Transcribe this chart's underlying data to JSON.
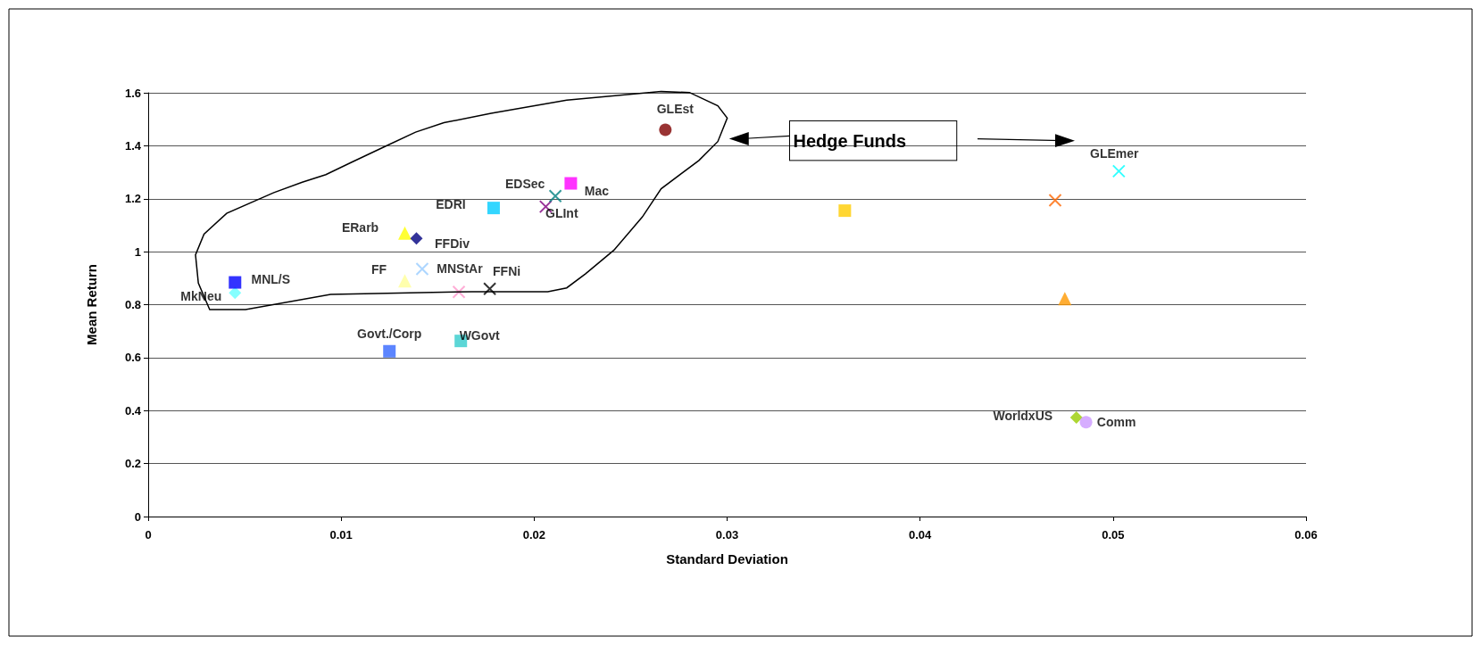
{
  "chart_data": {
    "type": "scatter",
    "xlabel": "Standard Deviation",
    "ylabel": "Mean Return",
    "xlim": [
      0,
      0.06
    ],
    "xticks": [
      0,
      0.01,
      0.02,
      0.03,
      0.04,
      0.05,
      0.06
    ],
    "ylim": [
      0,
      1.6
    ],
    "yticks": [
      0,
      0.2,
      0.4,
      0.6,
      0.8,
      1,
      1.2,
      1.4,
      1.6
    ],
    "grid": "y",
    "legend": false,
    "annotations": [
      "Hedge Funds"
    ],
    "series": [
      {
        "name": "MkNeu",
        "color": "#66ffff",
        "marker": "diamond",
        "x": [
          0.0045
        ],
        "values": [
          0.845
        ]
      },
      {
        "name": "MNL/S",
        "color": "#0000ff",
        "marker": "square",
        "x": [
          0.0045
        ],
        "values": [
          0.884
        ]
      },
      {
        "name": "ERarb",
        "color": "#ffff00",
        "marker": "triangle",
        "x": [
          0.0133
        ],
        "values": [
          1.07
        ]
      },
      {
        "name": "FFDiv",
        "color": "#000080",
        "marker": "diamond",
        "x": [
          0.0139
        ],
        "values": [
          1.05
        ]
      },
      {
        "name": "FF",
        "color": "#ffff99",
        "marker": "triangle",
        "x": [
          0.0133
        ],
        "values": [
          0.89
        ]
      },
      {
        "name": "MNStAr",
        "color": "#99ccff",
        "marker": "cross",
        "x": [
          0.0142
        ],
        "values": [
          0.935
        ]
      },
      {
        "color": "#ff99cc",
        "marker": "cross",
        "x": [
          0.0161
        ],
        "values": [
          0.848
        ]
      },
      {
        "name": "FFNi",
        "color": "#000000",
        "marker": "cross",
        "x": [
          0.0177
        ],
        "values": [
          0.86
        ]
      },
      {
        "name": "EDRI",
        "color": "#00ccff",
        "marker": "square",
        "x": [
          0.0179
        ],
        "values": [
          1.165
        ]
      },
      {
        "name": "GLInt",
        "color": "#800080",
        "marker": "cross",
        "x": [
          0.0206
        ],
        "values": [
          1.17
        ]
      },
      {
        "name": "EDSec",
        "color": "#008080",
        "marker": "cross",
        "x": [
          0.0211
        ],
        "values": [
          1.21
        ]
      },
      {
        "name": "Mac",
        "color": "#ff00ff",
        "marker": "square",
        "x": [
          0.0219
        ],
        "values": [
          1.258
        ]
      },
      {
        "name": "GLEst",
        "color": "#800000",
        "marker": "circle",
        "x": [
          0.0268
        ],
        "values": [
          1.46
        ]
      },
      {
        "name": "Govt./Corp",
        "color": "#3366ff",
        "marker": "square",
        "x": [
          0.0125
        ],
        "values": [
          0.624
        ]
      },
      {
        "name": "WGovt",
        "color": "#33cccc",
        "marker": "square",
        "x": [
          0.0162
        ],
        "values": [
          0.663
        ]
      },
      {
        "color": "#ffcc00",
        "marker": "square",
        "x": [
          0.0361
        ],
        "values": [
          1.155
        ]
      },
      {
        "color": "#ff6600",
        "marker": "cross",
        "x": [
          0.047
        ],
        "values": [
          1.194
        ]
      },
      {
        "name": "GLEmer",
        "color": "#00ffff",
        "marker": "cross",
        "x": [
          0.0503
        ],
        "values": [
          1.304
        ]
      },
      {
        "color": "#ff9900",
        "marker": "triangle",
        "x": [
          0.0475
        ],
        "values": [
          0.823
        ]
      },
      {
        "name": "WorldxUS",
        "color": "#99cc00",
        "marker": "diamond",
        "x": [
          0.0481
        ],
        "values": [
          0.374
        ]
      },
      {
        "name": "Comm",
        "color": "#cc99ff",
        "marker": "circle",
        "x": [
          0.0486
        ],
        "values": [
          0.356
        ]
      }
    ]
  }
}
